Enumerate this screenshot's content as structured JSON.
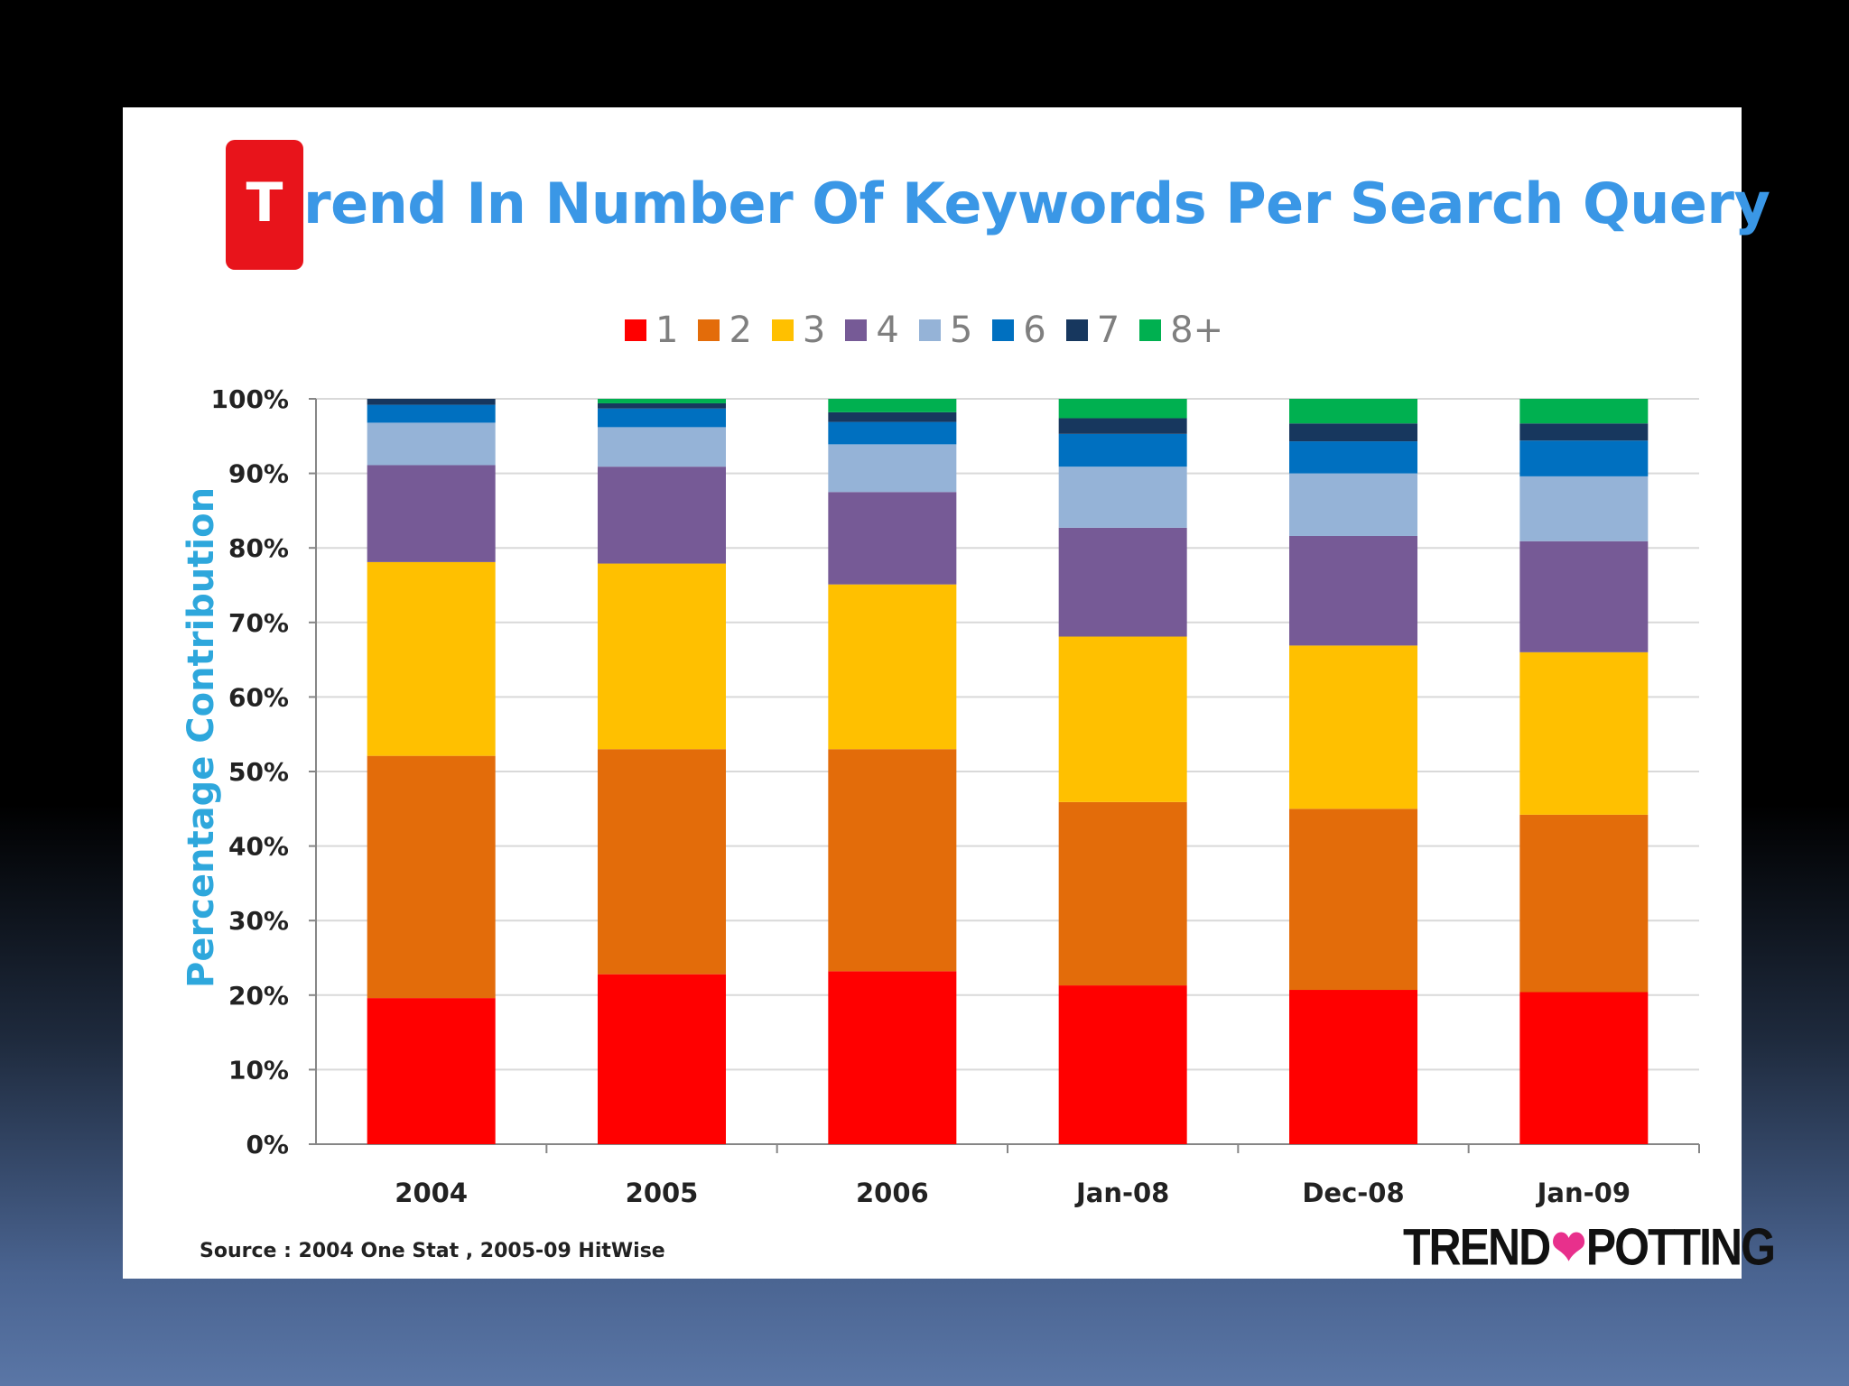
{
  "slide": {
    "badge_letter": "T",
    "title": "rend  In Number Of Keywords Per Search Query",
    "source": "Source : 2004  One Stat  , 2005-09 HitWise",
    "logo_left": "TREND",
    "logo_right": "POTTING",
    "logo_heart": "❤"
  },
  "chart_data": {
    "type": "bar",
    "stacked": true,
    "ylabel": "Percentage Contribution",
    "ylim": [
      0,
      100
    ],
    "yticks": [
      "0%",
      "10%",
      "20%",
      "30%",
      "40%",
      "50%",
      "60%",
      "70%",
      "80%",
      "90%",
      "100%"
    ],
    "categories": [
      "2004",
      "2005",
      "2006",
      "Jan-08",
      "Dec-08",
      "Jan-09"
    ],
    "legend_position": "top",
    "grid": true,
    "series": [
      {
        "name": "1",
        "color": "#ff0000",
        "values": [
          19.6,
          22.8,
          23.2,
          21.3,
          20.7,
          20.4
        ]
      },
      {
        "name": "2",
        "color": "#e36c0a",
        "values": [
          32.5,
          30.2,
          29.8,
          24.6,
          24.3,
          23.8
        ]
      },
      {
        "name": "3",
        "color": "#ffc000",
        "values": [
          26.0,
          24.9,
          22.1,
          22.2,
          21.9,
          21.8
        ]
      },
      {
        "name": "4",
        "color": "#765a96",
        "values": [
          13.0,
          13.0,
          12.4,
          14.6,
          14.7,
          14.9
        ]
      },
      {
        "name": "5",
        "color": "#95b3d7",
        "values": [
          5.7,
          5.3,
          6.4,
          8.2,
          8.4,
          8.7
        ]
      },
      {
        "name": "6",
        "color": "#0070c0",
        "values": [
          2.4,
          2.5,
          3.0,
          4.4,
          4.3,
          4.8
        ]
      },
      {
        "name": "7",
        "color": "#17375e",
        "values": [
          0.8,
          0.7,
          1.3,
          2.1,
          2.4,
          2.3
        ]
      },
      {
        "name": "8+",
        "color": "#00b050",
        "values": [
          0.0,
          0.6,
          1.8,
          2.6,
          3.3,
          3.3
        ]
      }
    ]
  }
}
